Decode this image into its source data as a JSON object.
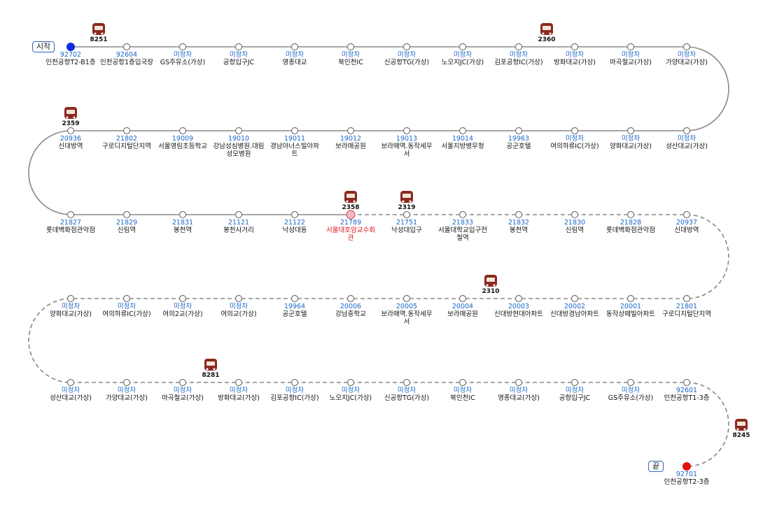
{
  "start_label": "시작",
  "end_label": "끝",
  "stops": [
    {
      "code": "92702",
      "name": "인천공항T2-B1층"
    },
    {
      "code": "92604",
      "name": "인천공항1층입국장"
    },
    {
      "code": "미정차",
      "name": "GS주유소(가상)"
    },
    {
      "code": "미정차",
      "name": "공항입구JC"
    },
    {
      "code": "미정차",
      "name": "영종대교"
    },
    {
      "code": "미정차",
      "name": "북인천IC"
    },
    {
      "code": "미정차",
      "name": "신공항TG(가상)"
    },
    {
      "code": "미정차",
      "name": "노오지JC(가상)"
    },
    {
      "code": "미정차",
      "name": "김포공항IC(가상)"
    },
    {
      "code": "미정차",
      "name": "방화대교(가상)"
    },
    {
      "code": "미정차",
      "name": "마곡철교(가상)"
    },
    {
      "code": "미정차",
      "name": "가양대교(가상)"
    },
    {
      "code": "미정차",
      "name": "성산대교(가상)"
    },
    {
      "code": "미정차",
      "name": "양화대교(가상)"
    },
    {
      "code": "미정차",
      "name": "여의하류IC(가상)"
    },
    {
      "code": "19963",
      "name": "공군호텔"
    },
    {
      "code": "19014",
      "name": "서울지방병무청"
    },
    {
      "code": "19013",
      "name": "보라매역.동작세무서"
    },
    {
      "code": "19012",
      "name": "보라매공원"
    },
    {
      "code": "19011",
      "name": "경남아너스빌아파트"
    },
    {
      "code": "19010",
      "name": "강남성심병원.대림성모병원"
    },
    {
      "code": "19009",
      "name": "서울영림초등학교"
    },
    {
      "code": "21802",
      "name": "구로디지털단지역"
    },
    {
      "code": "20936",
      "name": "신대방역"
    },
    {
      "code": "21827",
      "name": "롯데백화점관악점"
    },
    {
      "code": "21829",
      "name": "신림역"
    },
    {
      "code": "21831",
      "name": "봉천역"
    },
    {
      "code": "21121",
      "name": "봉천사거리"
    },
    {
      "code": "21122",
      "name": "낙성대동"
    },
    {
      "code": "21789",
      "name": "서울대호암교수회관"
    },
    {
      "code": "21751",
      "name": "낙성대입구"
    },
    {
      "code": "21833",
      "name": "서울대학교입구전철역"
    },
    {
      "code": "21832",
      "name": "봉천역"
    },
    {
      "code": "21830",
      "name": "신림역"
    },
    {
      "code": "21828",
      "name": "롯데백화점관악점"
    },
    {
      "code": "20937",
      "name": "신대방역"
    },
    {
      "code": "21801",
      "name": "구로디지털단지역"
    },
    {
      "code": "20001",
      "name": "동작상떼빌아파트"
    },
    {
      "code": "20002",
      "name": "신대방경남아파트"
    },
    {
      "code": "20003",
      "name": "신대방현대아파트"
    },
    {
      "code": "20004",
      "name": "보라매공원"
    },
    {
      "code": "20005",
      "name": "보라매역.동작세무서"
    },
    {
      "code": "20006",
      "name": "강남중학교"
    },
    {
      "code": "19964",
      "name": "공군호텔"
    },
    {
      "code": "미정차",
      "name": "여의교(가상)"
    },
    {
      "code": "미정차",
      "name": "여의2교(가상)"
    },
    {
      "code": "미정차",
      "name": "여의하류IC(가상)"
    },
    {
      "code": "미정차",
      "name": "양화대교(가상)"
    },
    {
      "code": "미정차",
      "name": "성산대교(가상)"
    },
    {
      "code": "미정차",
      "name": "가양대교(가상)"
    },
    {
      "code": "미정차",
      "name": "마곡철교(가상)"
    },
    {
      "code": "미정차",
      "name": "방화대교(가상)"
    },
    {
      "code": "미정차",
      "name": "김포공항IC(가상)"
    },
    {
      "code": "미정차",
      "name": "노오지JC(가상)"
    },
    {
      "code": "미정차",
      "name": "신공항TG(가상)"
    },
    {
      "code": "미정차",
      "name": "북인천IC"
    },
    {
      "code": "미정차",
      "name": "영종대교(가상)"
    },
    {
      "code": "미정차",
      "name": "공항입구JC"
    },
    {
      "code": "미정차",
      "name": "GS주유소(가상)"
    },
    {
      "code": "92601",
      "name": "인천공항T1-3층"
    },
    {
      "code": "92701",
      "name": "인천공항T2-3층"
    }
  ],
  "buses": [
    {
      "number": "8251"
    },
    {
      "number": "2360"
    },
    {
      "number": "2359"
    },
    {
      "number": "2358"
    },
    {
      "number": "2319"
    },
    {
      "number": "2310"
    },
    {
      "number": "8281"
    },
    {
      "number": "8245"
    }
  ]
}
